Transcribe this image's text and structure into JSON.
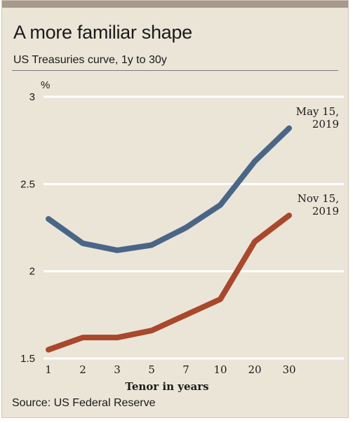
{
  "title": "A more familiar shape",
  "subtitle": "US Treasuries curve, 1y to 30y",
  "source": "Source: US Federal Reserve",
  "chart_data": {
    "type": "line",
    "ylabel": "%",
    "xlabel": "Tenor in years",
    "categories": [
      "1",
      "2",
      "3",
      "5",
      "7",
      "10",
      "20",
      "30"
    ],
    "ylim": [
      1.5,
      3.0
    ],
    "yticks": [
      1.5,
      2,
      2.5,
      3
    ],
    "ytick_labels": [
      "1.5",
      "2",
      "2.5",
      "3"
    ],
    "grid": true,
    "series": [
      {
        "name_lines": [
          "May 15,",
          "2019"
        ],
        "color": "#4a6687",
        "values": [
          2.3,
          2.16,
          2.12,
          2.15,
          2.25,
          2.38,
          2.63,
          2.82
        ]
      },
      {
        "name_lines": [
          "Nov 15,",
          "2019"
        ],
        "color": "#a8482c",
        "values": [
          1.55,
          1.62,
          1.62,
          1.66,
          1.75,
          1.84,
          2.17,
          2.32
        ]
      }
    ]
  },
  "colors": {
    "background": "#ebe5d8",
    "top_bar": "#a8998c",
    "grid": "#ffffff"
  }
}
